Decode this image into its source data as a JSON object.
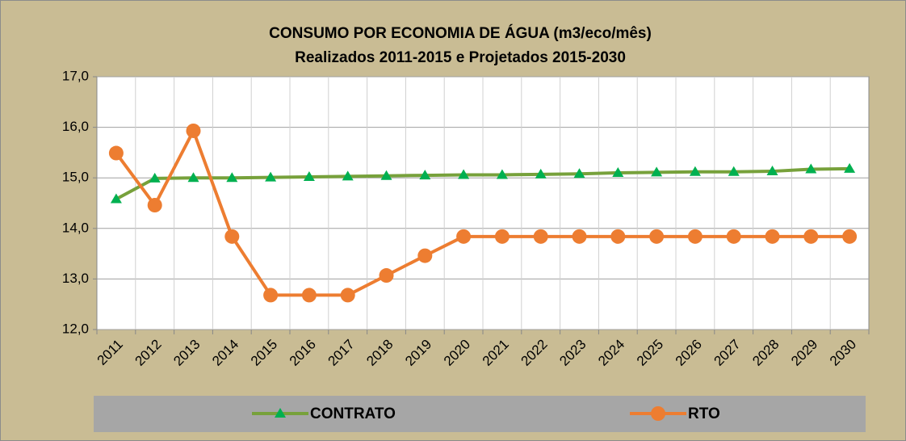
{
  "chart_data": {
    "type": "line",
    "title": "CONSUMO POR ECONOMIA DE ÁGUA (m3/eco/mês)",
    "subtitle": "Realizados 2011-2015 e Projetados 2015-2030",
    "categories": [
      "2011",
      "2012",
      "2013",
      "2014",
      "2015",
      "2016",
      "2017",
      "2018",
      "2019",
      "2020",
      "2021",
      "2022",
      "2023",
      "2024",
      "2025",
      "2026",
      "2027",
      "2028",
      "2029",
      "2030"
    ],
    "series": [
      {
        "name": "CONTRATO",
        "color": "#77a13b",
        "marker": "triangle",
        "marker_color": "#00b050",
        "values": [
          14.58,
          14.99,
          15.0,
          15.0,
          15.01,
          15.02,
          15.03,
          15.04,
          15.05,
          15.06,
          15.06,
          15.07,
          15.08,
          15.1,
          15.11,
          15.12,
          15.12,
          15.13,
          15.17,
          15.18
        ]
      },
      {
        "name": "RTO",
        "color": "#ed7d31",
        "marker": "circle",
        "marker_color": "#ed7d31",
        "values": [
          15.49,
          14.46,
          15.93,
          13.84,
          12.68,
          12.68,
          12.68,
          13.07,
          13.46,
          13.84,
          13.84,
          13.84,
          13.84,
          13.84,
          13.84,
          13.84,
          13.84,
          13.84,
          13.84,
          13.84
        ]
      }
    ],
    "ylim": [
      12,
      17
    ],
    "yticks": [
      {
        "value": 12,
        "label": "12,0"
      },
      {
        "value": 13,
        "label": "13,0"
      },
      {
        "value": 14,
        "label": "14,0"
      },
      {
        "value": 15,
        "label": "15,0"
      },
      {
        "value": 16,
        "label": "16,0"
      },
      {
        "value": 17,
        "label": "17,0"
      }
    ],
    "grid": true,
    "legend": "bottom"
  }
}
